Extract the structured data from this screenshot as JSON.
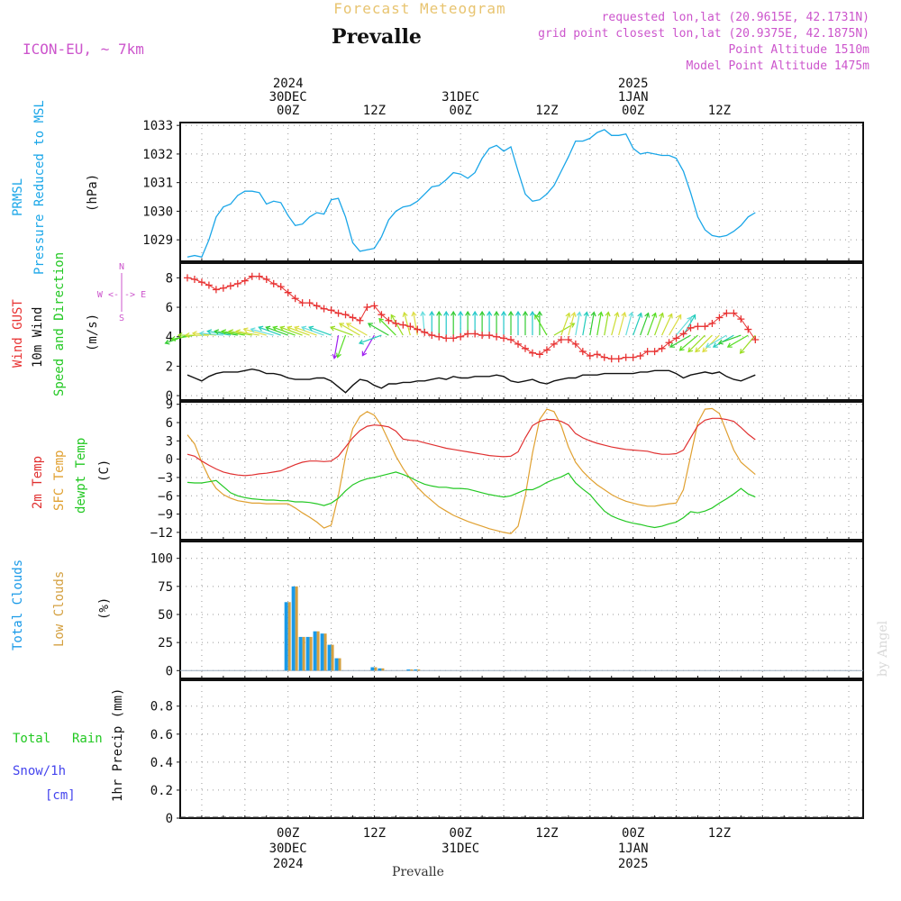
{
  "header": {
    "forecast_title": "Forecast Meteogram",
    "location": "Prevalle",
    "model": "ICON-EU, ~ 7km",
    "requested": "requested lon,lat (20.9615E, 42.1731N)",
    "grid_point": "grid point closest lon,lat (20.9375E, 42.1875N)",
    "point_alt": "Point Altitude 1510m",
    "model_alt": "Model Point Altitude 1475m",
    "footer_location": "Prevalle",
    "watermark": "by Angel"
  },
  "time_axis": {
    "hours_range": [
      -15,
      80
    ],
    "top_labels": [
      {
        "hour": 0,
        "lines": [
          "2024",
          "30DEC",
          "00Z"
        ]
      },
      {
        "hour": 12,
        "lines": [
          "12Z"
        ]
      },
      {
        "hour": 24,
        "lines": [
          "31DEC",
          "00Z"
        ]
      },
      {
        "hour": 36,
        "lines": [
          "12Z"
        ]
      },
      {
        "hour": 48,
        "lines": [
          "2025",
          "1JAN",
          "00Z"
        ]
      },
      {
        "hour": 60,
        "lines": [
          "12Z"
        ]
      }
    ],
    "bottom_labels": [
      {
        "hour": 0,
        "lines": [
          "00Z",
          "30DEC",
          "2024"
        ]
      },
      {
        "hour": 12,
        "lines": [
          "12Z"
        ]
      },
      {
        "hour": 24,
        "lines": [
          "00Z",
          "31DEC"
        ]
      },
      {
        "hour": 36,
        "lines": [
          "12Z"
        ]
      },
      {
        "hour": 48,
        "lines": [
          "00Z",
          "1JAN",
          "2025"
        ]
      },
      {
        "hour": 60,
        "lines": [
          "12Z"
        ]
      }
    ]
  },
  "panel_labels": {
    "pressure": {
      "main": "PRMSL",
      "sub": "Pressure Reduced to MSL",
      "unit": "(hPa)"
    },
    "wind": {
      "gust": "Wind GUST",
      "wind10": "10m Wind",
      "dir": "Speed and Direction",
      "unit": "(m/s)",
      "compass_n": "N",
      "compass_ew": "W <-|-> E",
      "compass_s": "S"
    },
    "temp": {
      "t2m": "2m Temp",
      "sfc": "SFC Temp",
      "dew": "dewpt Temp",
      "unit": "(C)"
    },
    "clouds": {
      "total": "Total Clouds",
      "low": "Low Clouds",
      "unit": "(%)"
    },
    "precip": {
      "total": "Total",
      "rain": "Rain",
      "snow": "Snow/1h",
      "snow_unit": "[cm]",
      "axis": "1hr Precip (mm)"
    }
  },
  "colors": {
    "pressure": "#1aa6e8",
    "gust": "#e83232",
    "wind": "#111111",
    "t2m": "#e03030",
    "sfc": "#e0a030",
    "dew": "#22c822",
    "total_clouds": "#1a9ae8",
    "low_clouds": "#d4a040",
    "rain": "#22c822",
    "snow": "#4444ee",
    "magenta": "#cc55cc"
  },
  "chart_data": [
    {
      "type": "line",
      "title": "PRMSL Pressure Reduced to MSL",
      "ylabel": "(hPa)",
      "ylim": [
        1028.25,
        1033.1
      ],
      "yticks": [
        1029,
        1030,
        1031,
        1032,
        1033
      ],
      "x": [
        -14,
        -13,
        -12,
        -11,
        -10,
        -9,
        -8,
        -7,
        -6,
        -5,
        -4,
        -3,
        -2,
        -1,
        0,
        1,
        2,
        3,
        4,
        5,
        6,
        7,
        8,
        9,
        10,
        11,
        12,
        13,
        14,
        15,
        16,
        17,
        18,
        19,
        20,
        21,
        22,
        23,
        24,
        25,
        26,
        27,
        28,
        29,
        30,
        31,
        32,
        33,
        34,
        35,
        36,
        37,
        38,
        39,
        40,
        41,
        42,
        43,
        44,
        45,
        46,
        47,
        48,
        49,
        50,
        51,
        52,
        53,
        54,
        55,
        56,
        57,
        58,
        59,
        60,
        61,
        62,
        63,
        64,
        65
      ],
      "series": [
        {
          "name": "PRMSL",
          "values": [
            1028.4,
            1028.45,
            1028.4,
            1029.0,
            1029.8,
            1030.15,
            1030.25,
            1030.55,
            1030.7,
            1030.7,
            1030.65,
            1030.25,
            1030.35,
            1030.3,
            1029.85,
            1029.5,
            1029.55,
            1029.8,
            1029.95,
            1029.9,
            1030.4,
            1030.45,
            1029.8,
            1028.9,
            1028.6,
            1028.65,
            1028.7,
            1029.1,
            1029.7,
            1030.0,
            1030.15,
            1030.2,
            1030.35,
            1030.6,
            1030.85,
            1030.9,
            1031.1,
            1031.35,
            1031.3,
            1031.15,
            1031.35,
            1031.85,
            1032.2,
            1032.3,
            1032.1,
            1032.25,
            1031.4,
            1030.6,
            1030.35,
            1030.4,
            1030.6,
            1030.9,
            1031.4,
            1031.9,
            1032.45,
            1032.45,
            1032.55,
            1032.75,
            1032.85,
            1032.65,
            1032.65,
            1032.7,
            1032.2,
            1032.0,
            1032.05,
            1032.0,
            1031.95,
            1031.95,
            1031.85,
            1031.4,
            1030.65,
            1029.8,
            1029.35,
            1029.15,
            1029.1,
            1029.15,
            1029.3,
            1029.5,
            1029.8,
            1029.95
          ]
        }
      ]
    },
    {
      "type": "line",
      "title": "Wind GUST / 10m Wind Speed and Direction",
      "ylabel": "(m/s)",
      "ylim": [
        -0.3,
        9
      ],
      "yticks": [
        0,
        2,
        4,
        6,
        8
      ],
      "x": [
        -14,
        -13,
        -12,
        -11,
        -10,
        -9,
        -8,
        -7,
        -6,
        -5,
        -4,
        -3,
        -2,
        -1,
        0,
        1,
        2,
        3,
        4,
        5,
        6,
        7,
        8,
        9,
        10,
        11,
        12,
        13,
        14,
        15,
        16,
        17,
        18,
        19,
        20,
        21,
        22,
        23,
        24,
        25,
        26,
        27,
        28,
        29,
        30,
        31,
        32,
        33,
        34,
        35,
        36,
        37,
        38,
        39,
        40,
        41,
        42,
        43,
        44,
        45,
        46,
        47,
        48,
        49,
        50,
        51,
        52,
        53,
        54,
        55,
        56,
        57,
        58,
        59,
        60,
        61,
        62,
        63,
        64,
        65
      ],
      "series": [
        {
          "name": "Wind GUST",
          "values": [
            8.0,
            7.9,
            7.7,
            7.5,
            7.2,
            7.3,
            7.45,
            7.6,
            7.8,
            8.1,
            8.1,
            7.9,
            7.6,
            7.4,
            7.0,
            6.6,
            6.3,
            6.3,
            6.1,
            5.9,
            5.8,
            5.6,
            5.5,
            5.3,
            5.1,
            6.0,
            6.1,
            5.5,
            5.1,
            4.9,
            4.8,
            4.7,
            4.5,
            4.3,
            4.1,
            4.0,
            3.9,
            3.9,
            4.0,
            4.2,
            4.2,
            4.1,
            4.1,
            4.0,
            3.9,
            3.8,
            3.5,
            3.2,
            2.9,
            2.8,
            3.1,
            3.5,
            3.8,
            3.8,
            3.5,
            3.0,
            2.7,
            2.8,
            2.6,
            2.5,
            2.5,
            2.6,
            2.6,
            2.7,
            3.0,
            3.0,
            3.2,
            3.6,
            3.9,
            4.2,
            4.6,
            4.7,
            4.7,
            4.9,
            5.3,
            5.6,
            5.6,
            5.2,
            4.5,
            3.8
          ]
        },
        {
          "name": "10m Wind",
          "values": [
            1.4,
            1.2,
            1.0,
            1.3,
            1.5,
            1.6,
            1.6,
            1.6,
            1.7,
            1.8,
            1.7,
            1.5,
            1.5,
            1.4,
            1.2,
            1.1,
            1.1,
            1.1,
            1.2,
            1.2,
            1.0,
            0.6,
            0.2,
            0.7,
            1.1,
            1.0,
            0.7,
            0.5,
            0.8,
            0.8,
            0.9,
            0.9,
            1.0,
            1.0,
            1.1,
            1.2,
            1.1,
            1.3,
            1.2,
            1.2,
            1.3,
            1.3,
            1.3,
            1.4,
            1.3,
            1.0,
            0.9,
            1.0,
            1.1,
            0.9,
            0.8,
            1.0,
            1.1,
            1.2,
            1.2,
            1.4,
            1.4,
            1.4,
            1.5,
            1.5,
            1.5,
            1.5,
            1.5,
            1.6,
            1.6,
            1.7,
            1.7,
            1.7,
            1.5,
            1.2,
            1.4,
            1.5,
            1.6,
            1.5,
            1.6,
            1.3,
            1.1,
            1.0,
            1.2,
            1.4
          ]
        }
      ],
      "wind_direction_deg": [
        250,
        260,
        270,
        270,
        275,
        275,
        280,
        280,
        280,
        280,
        280,
        285,
        285,
        290,
        290,
        290,
        290,
        290,
        290,
        290,
        290,
        190,
        200,
        290,
        300,
        300,
        210,
        250,
        300,
        315,
        330,
        345,
        350,
        355,
        0,
        0,
        0,
        0,
        0,
        0,
        0,
        0,
        0,
        0,
        0,
        0,
        0,
        0,
        0,
        0,
        330,
        60,
        20,
        15,
        10,
        10,
        10,
        10,
        10,
        15,
        15,
        15,
        20,
        20,
        20,
        20,
        25,
        30,
        40,
        30,
        240,
        230,
        225,
        225,
        225,
        240,
        240,
        250,
        240,
        220
      ]
    },
    {
      "type": "line",
      "title": "2m Temp / SFC Temp / dewpt Temp",
      "ylabel": "(C)",
      "ylim": [
        -13.2,
        9.4
      ],
      "yticks": [
        -12,
        -9,
        -6,
        -3,
        0,
        3,
        6,
        9
      ],
      "x": [
        -14,
        -13,
        -12,
        -11,
        -10,
        -9,
        -8,
        -7,
        -6,
        -5,
        -4,
        -3,
        -2,
        -1,
        0,
        1,
        2,
        3,
        4,
        5,
        6,
        7,
        8,
        9,
        10,
        11,
        12,
        13,
        14,
        15,
        16,
        17,
        18,
        19,
        20,
        21,
        22,
        23,
        24,
        25,
        26,
        27,
        28,
        29,
        30,
        31,
        32,
        33,
        34,
        35,
        36,
        37,
        38,
        39,
        40,
        41,
        42,
        43,
        44,
        45,
        46,
        47,
        48,
        49,
        50,
        51,
        52,
        53,
        54,
        55,
        56,
        57,
        58,
        59,
        60,
        61,
        62,
        63,
        64,
        65
      ],
      "series": [
        {
          "name": "2m Temp",
          "values": [
            0.8,
            0.5,
            -0.3,
            -1.0,
            -1.6,
            -2.1,
            -2.4,
            -2.6,
            -2.7,
            -2.6,
            -2.4,
            -2.3,
            -2.1,
            -1.9,
            -1.4,
            -0.9,
            -0.5,
            -0.3,
            -0.3,
            -0.4,
            -0.3,
            0.5,
            2.0,
            3.5,
            4.7,
            5.4,
            5.6,
            5.5,
            5.3,
            4.6,
            3.3,
            3.1,
            3.0,
            2.7,
            2.4,
            2.1,
            1.8,
            1.6,
            1.4,
            1.2,
            1.0,
            0.8,
            0.6,
            0.5,
            0.4,
            0.5,
            1.2,
            3.5,
            5.5,
            6.2,
            6.5,
            6.5,
            6.2,
            5.6,
            4.2,
            3.5,
            3.0,
            2.6,
            2.3,
            2.0,
            1.8,
            1.6,
            1.5,
            1.4,
            1.3,
            1.0,
            0.8,
            0.8,
            0.9,
            1.5,
            3.5,
            5.5,
            6.4,
            6.7,
            6.7,
            6.5,
            6.2,
            5.2,
            4.1,
            3.2
          ]
        },
        {
          "name": "SFC Temp",
          "values": [
            4.0,
            2.5,
            -0.5,
            -3.0,
            -4.8,
            -5.8,
            -6.4,
            -6.8,
            -7.0,
            -7.2,
            -7.2,
            -7.3,
            -7.3,
            -7.3,
            -7.3,
            -8.0,
            -8.8,
            -9.5,
            -10.3,
            -11.3,
            -10.8,
            -6.0,
            0.5,
            5.0,
            7.0,
            7.8,
            7.2,
            5.5,
            3.0,
            0.5,
            -1.5,
            -3.2,
            -4.6,
            -5.8,
            -6.8,
            -7.8,
            -8.5,
            -9.2,
            -9.7,
            -10.2,
            -10.6,
            -11.0,
            -11.4,
            -11.7,
            -12.0,
            -12.2,
            -11.0,
            -6.0,
            1.0,
            6.5,
            8.2,
            7.8,
            5.5,
            2.0,
            -0.5,
            -2.0,
            -3.2,
            -4.2,
            -5.0,
            -5.8,
            -6.4,
            -6.9,
            -7.2,
            -7.5,
            -7.7,
            -7.7,
            -7.5,
            -7.3,
            -7.2,
            -5.0,
            0.5,
            6.0,
            8.2,
            8.3,
            7.5,
            4.5,
            1.5,
            -0.5,
            -1.5,
            -2.5
          ]
        },
        {
          "name": "dewpt Temp",
          "values": [
            -3.8,
            -3.9,
            -3.9,
            -3.7,
            -3.5,
            -4.5,
            -5.5,
            -6.0,
            -6.3,
            -6.5,
            -6.6,
            -6.7,
            -6.7,
            -6.8,
            -6.8,
            -7.0,
            -7.0,
            -7.1,
            -7.3,
            -7.6,
            -7.2,
            -6.4,
            -5.2,
            -4.2,
            -3.6,
            -3.2,
            -3.0,
            -2.7,
            -2.4,
            -2.1,
            -2.5,
            -3.0,
            -3.6,
            -4.1,
            -4.4,
            -4.6,
            -4.6,
            -4.8,
            -4.8,
            -4.9,
            -5.2,
            -5.5,
            -5.8,
            -6.0,
            -6.2,
            -6.0,
            -5.5,
            -5.0,
            -5.0,
            -4.5,
            -3.8,
            -3.3,
            -2.9,
            -2.3,
            -3.9,
            -4.9,
            -5.8,
            -7.2,
            -8.5,
            -9.3,
            -9.8,
            -10.2,
            -10.5,
            -10.7,
            -11.0,
            -11.2,
            -11.0,
            -10.6,
            -10.3,
            -9.6,
            -8.6,
            -8.8,
            -8.5,
            -8.0,
            -7.2,
            -6.5,
            -5.7,
            -4.8,
            -5.7,
            -6.2
          ]
        }
      ]
    },
    {
      "type": "bar",
      "title": "Total Clouds / Low Clouds",
      "ylabel": "(%)",
      "ylim": [
        -7,
        115
      ],
      "yticks": [
        0,
        25,
        50,
        75,
        100
      ],
      "x": [
        0,
        1,
        2,
        3,
        4,
        5,
        6,
        7,
        12,
        13,
        17,
        18
      ],
      "series": [
        {
          "name": "Total Clouds",
          "values": [
            61,
            75,
            30,
            30,
            35,
            33,
            23,
            11,
            3,
            2,
            1,
            1
          ]
        },
        {
          "name": "Low Clouds",
          "values": [
            61,
            75,
            30,
            30,
            35,
            33,
            23,
            11,
            3,
            2,
            1,
            1
          ]
        }
      ]
    },
    {
      "type": "bar",
      "title": "1hr Precip (mm)",
      "ylabel": "1hr Precip (mm)",
      "ylim": [
        0,
        0.985
      ],
      "yticks": [
        0,
        0.2,
        0.4,
        0.6,
        0.8
      ],
      "ytick_labels": [
        "0",
        "0.2",
        "0.4",
        "0.6",
        "0.8"
      ],
      "series": [
        {
          "name": "Total Rain",
          "values": []
        },
        {
          "name": "Snow/1h",
          "values": []
        }
      ]
    }
  ]
}
